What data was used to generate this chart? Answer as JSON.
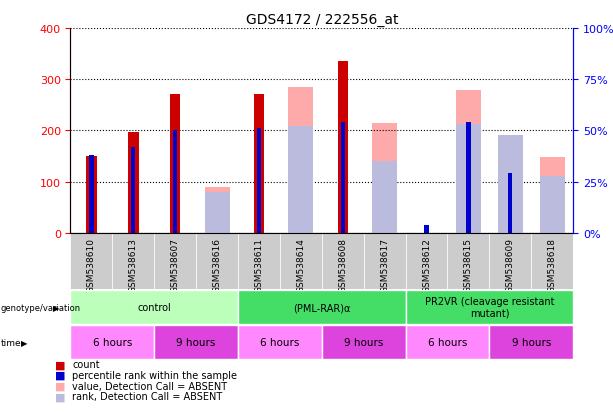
{
  "title": "GDS4172 / 222556_at",
  "samples": [
    "GSM538610",
    "GSM538613",
    "GSM538607",
    "GSM538616",
    "GSM538611",
    "GSM538614",
    "GSM538608",
    "GSM538617",
    "GSM538612",
    "GSM538615",
    "GSM538609",
    "GSM538618"
  ],
  "count_values": [
    150,
    197,
    272,
    null,
    272,
    null,
    335,
    null,
    null,
    null,
    null,
    null
  ],
  "percentile_values_pct": [
    38,
    42,
    50,
    null,
    51,
    null,
    54,
    null,
    4,
    54,
    29,
    null
  ],
  "absent_value_values": [
    null,
    null,
    null,
    90,
    null,
    285,
    null,
    215,
    null,
    278,
    null,
    148
  ],
  "absent_rank_values_pct": [
    null,
    null,
    null,
    20,
    null,
    52,
    null,
    35,
    null,
    53,
    48,
    28
  ],
  "ylim_left": [
    0,
    400
  ],
  "ylim_right": [
    0,
    100
  ],
  "yticks_left": [
    0,
    100,
    200,
    300,
    400
  ],
  "yticks_right": [
    0,
    25,
    50,
    75,
    100
  ],
  "ytick_labels_right": [
    "0%",
    "25%",
    "50%",
    "75%",
    "100%"
  ],
  "color_count": "#cc0000",
  "color_percentile": "#0000cc",
  "color_absent_value": "#ffaaaa",
  "color_absent_rank": "#bbbbdd",
  "genotype_groups": [
    {
      "label": "control",
      "start": 0,
      "end": 3,
      "color": "#bbffbb"
    },
    {
      "label": "(PML-RAR)α",
      "start": 4,
      "end": 7,
      "color": "#44dd66"
    },
    {
      "label": "PR2VR (cleavage resistant\nmutant)",
      "start": 8,
      "end": 11,
      "color": "#44dd66"
    }
  ],
  "time_groups": [
    {
      "label": "6 hours",
      "start": 0,
      "end": 1,
      "color": "#ff88ff"
    },
    {
      "label": "9 hours",
      "start": 2,
      "end": 3,
      "color": "#dd44dd"
    },
    {
      "label": "6 hours",
      "start": 4,
      "end": 5,
      "color": "#ff88ff"
    },
    {
      "label": "9 hours",
      "start": 6,
      "end": 7,
      "color": "#dd44dd"
    },
    {
      "label": "6 hours",
      "start": 8,
      "end": 9,
      "color": "#ff88ff"
    },
    {
      "label": "9 hours",
      "start": 10,
      "end": 11,
      "color": "#dd44dd"
    }
  ],
  "legend_items": [
    {
      "label": "count",
      "color": "#cc0000"
    },
    {
      "label": "percentile rank within the sample",
      "color": "#0000cc"
    },
    {
      "label": "value, Detection Call = ABSENT",
      "color": "#ffaaaa"
    },
    {
      "label": "rank, Detection Call = ABSENT",
      "color": "#bbbbdd"
    }
  ],
  "background_color": "#ffffff",
  "sample_bg_color": "#cccccc",
  "left_label_color": "#000000"
}
